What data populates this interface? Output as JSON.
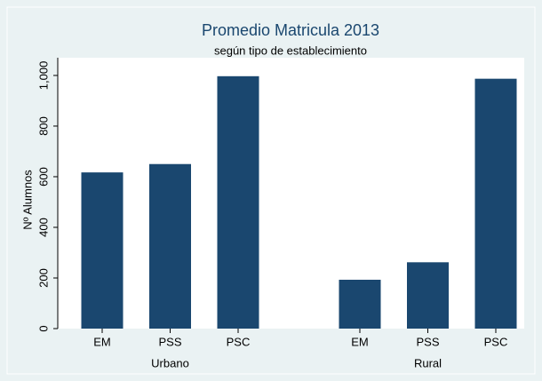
{
  "chart_data": {
    "type": "bar",
    "title": "Promedio Matricula 2013",
    "subtitle": "según tipo de establecimiento",
    "y_label": "Nº Alumnos",
    "color": "#1a476f",
    "groups": [
      {
        "name": "Urbano",
        "categories": [
          "EM",
          "PSS",
          "PSC"
        ],
        "values": [
          617,
          650,
          997
        ]
      },
      {
        "name": "Rural",
        "categories": [
          "EM",
          "PSS",
          "PSC"
        ],
        "values": [
          193,
          262,
          987
        ]
      }
    ],
    "ylim": [
      0,
      1070
    ],
    "yticks": [
      0,
      200,
      400,
      600,
      800,
      {
        "value": 1000,
        "label": "1,000"
      }
    ],
    "grid": false
  }
}
